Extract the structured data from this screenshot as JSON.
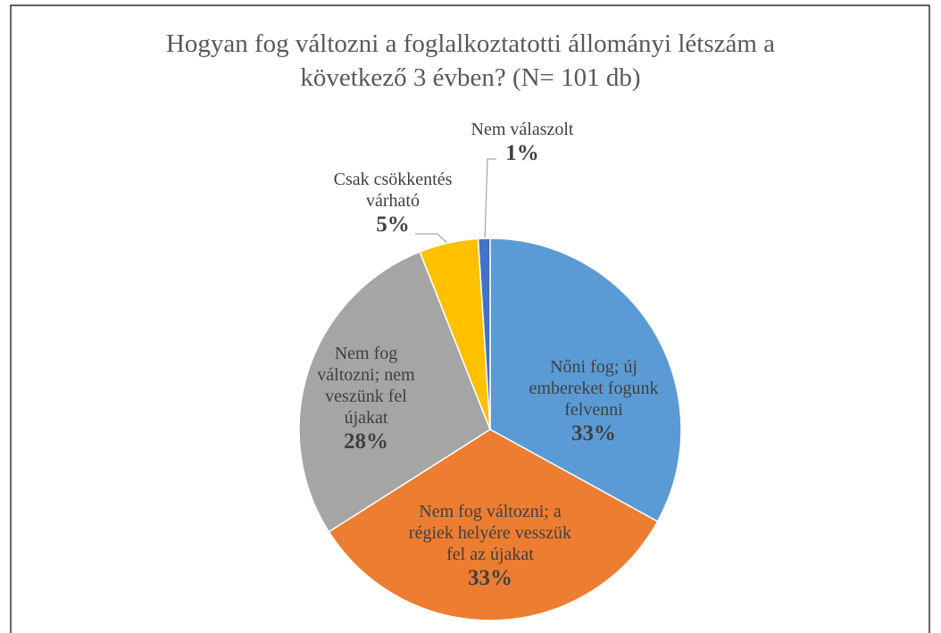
{
  "chart_data": {
    "type": "pie",
    "title": "Hogyan fog változni a foglalkoztatotti állományi létszám a következő 3 évben? (N= 101 db)",
    "categories": [
      "Nőni fog; új embereket fogunk felvenni",
      "Nem fog változni; a régiek helyére vesszük fel az újakat",
      "Nem fog változni; nem veszünk fel újakat",
      "Csak csökkentés várható",
      "Nem válaszolt"
    ],
    "values": [
      33,
      33,
      28,
      5,
      1
    ],
    "value_labels": [
      "33%",
      "33%",
      "28%",
      "5%",
      "1%"
    ],
    "colors": [
      "#5b9bd5",
      "#ed7d31",
      "#a5a5a5",
      "#ffc000",
      "#4472c4"
    ]
  }
}
